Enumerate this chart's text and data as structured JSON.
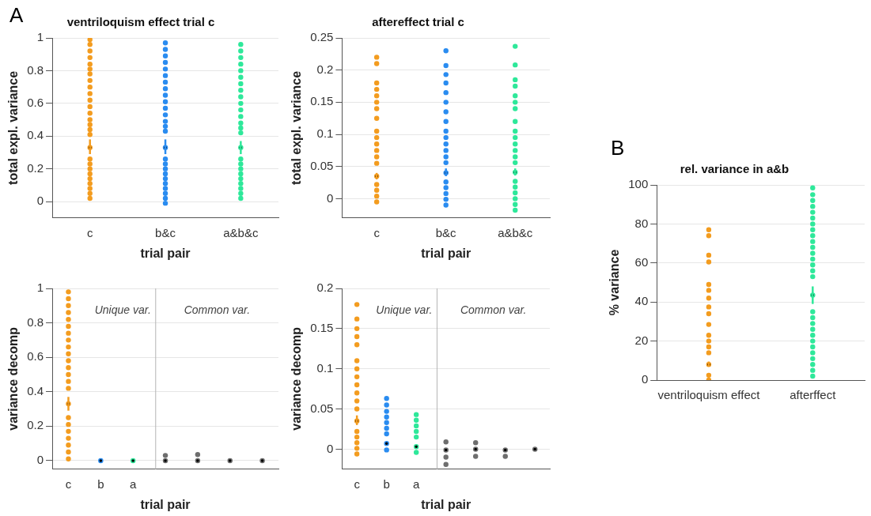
{
  "chart_data": [
    {
      "type": "scatter",
      "title": "ventriloquism effect trial c",
      "xlabel": "trial pair",
      "ylabel": "total expl. variance",
      "categories": [
        "c",
        "b&c",
        "a&b&c"
      ],
      "ylim": [
        -0.1,
        1
      ],
      "yticks": [
        0,
        0.2,
        0.4,
        0.6,
        0.8,
        1
      ],
      "grid": "y",
      "marker": "circle",
      "annotations": [
        "A"
      ],
      "series": [
        {
          "color": "#f39c1f",
          "x": [
            "c",
            "c",
            "c",
            "c",
            "c",
            "c",
            "c",
            "c",
            "c",
            "c",
            "c",
            "c",
            "c",
            "c",
            "c",
            "c",
            "c",
            "c",
            "c",
            "c",
            "c",
            "c",
            "c",
            "c",
            "c",
            "c"
          ],
          "values": [
            0.99,
            0.96,
            0.92,
            0.88,
            0.84,
            0.81,
            0.78,
            0.74,
            0.7,
            0.66,
            0.62,
            0.58,
            0.54,
            0.5,
            0.47,
            0.44,
            0.41,
            0.26,
            0.23,
            0.2,
            0.17,
            0.14,
            0.11,
            0.08,
            0.05,
            0.02
          ]
        },
        {
          "color": "#2a8cf0",
          "x": [
            "b&c",
            "b&c",
            "b&c",
            "b&c",
            "b&c",
            "b&c",
            "b&c",
            "b&c",
            "b&c",
            "b&c",
            "b&c",
            "b&c",
            "b&c",
            "b&c",
            "b&c",
            "b&c",
            "b&c",
            "b&c",
            "b&c",
            "b&c",
            "b&c",
            "b&c",
            "b&c",
            "b&c",
            "b&c"
          ],
          "values": [
            0.97,
            0.93,
            0.89,
            0.85,
            0.81,
            0.77,
            0.73,
            0.69,
            0.65,
            0.61,
            0.57,
            0.53,
            0.49,
            0.46,
            0.43,
            0.26,
            0.23,
            0.2,
            0.17,
            0.14,
            0.11,
            0.08,
            0.05,
            0.02,
            -0.01
          ]
        },
        {
          "color": "#2ee89a",
          "x": [
            "a&b&c",
            "a&b&c",
            "a&b&c",
            "a&b&c",
            "a&b&c",
            "a&b&c",
            "a&b&c",
            "a&b&c",
            "a&b&c",
            "a&b&c",
            "a&b&c",
            "a&b&c",
            "a&b&c",
            "a&b&c",
            "a&b&c",
            "a&b&c",
            "a&b&c",
            "a&b&c",
            "a&b&c",
            "a&b&c",
            "a&b&c",
            "a&b&c",
            "a&b&c",
            "a&b&c"
          ],
          "values": [
            0.96,
            0.92,
            0.88,
            0.84,
            0.8,
            0.76,
            0.72,
            0.68,
            0.64,
            0.6,
            0.56,
            0.52,
            0.48,
            0.45,
            0.42,
            0.26,
            0.23,
            0.2,
            0.17,
            0.14,
            0.11,
            0.08,
            0.05,
            0.02
          ]
        },
        {
          "colors": [
            "#f39c1f",
            "#2a8cf0",
            "#2ee89a"
          ],
          "values": [
            0.33,
            0.33,
            0.33
          ],
          "errors": [
            [
              0.29,
              0.38
            ],
            [
              0.29,
              0.38
            ],
            [
              0.29,
              0.37
            ]
          ]
        }
      ]
    },
    {
      "type": "scatter",
      "title": "aftereffect trial c",
      "xlabel": "trial pair",
      "ylabel": "total expl. variance",
      "categories": [
        "c",
        "b&c",
        "a&b&c"
      ],
      "ylim": [
        -0.03,
        0.25
      ],
      "yticks": [
        0,
        0.05,
        0.1,
        0.15,
        0.2,
        0.25
      ],
      "grid": "y",
      "marker": "circle",
      "series": [
        {
          "color": "#f39c1f",
          "x": [
            "c",
            "c",
            "c",
            "c",
            "c",
            "c",
            "c",
            "c",
            "c",
            "c",
            "c",
            "c",
            "c",
            "c",
            "c",
            "c",
            "c",
            "c"
          ],
          "values": [
            0.22,
            0.21,
            0.18,
            0.17,
            0.16,
            0.15,
            0.14,
            0.125,
            0.105,
            0.095,
            0.085,
            0.075,
            0.065,
            0.055,
            0.022,
            0.013,
            0.004,
            -0.005
          ]
        },
        {
          "color": "#2a8cf0",
          "x": [
            "b&c",
            "b&c",
            "b&c",
            "b&c",
            "b&c",
            "b&c",
            "b&c",
            "b&c",
            "b&c",
            "b&c",
            "b&c",
            "b&c",
            "b&c",
            "b&c",
            "b&c",
            "b&c",
            "b&c",
            "b&c",
            "b&c"
          ],
          "values": [
            0.23,
            0.207,
            0.193,
            0.18,
            0.165,
            0.15,
            0.135,
            0.12,
            0.105,
            0.095,
            0.085,
            0.075,
            0.065,
            0.056,
            0.026,
            0.017,
            0.008,
            -0.001,
            -0.01
          ]
        },
        {
          "color": "#2ee89a",
          "x": [
            "a&b&c",
            "a&b&c",
            "a&b&c",
            "a&b&c",
            "a&b&c",
            "a&b&c",
            "a&b&c",
            "a&b&c",
            "a&b&c",
            "a&b&c",
            "a&b&c",
            "a&b&c",
            "a&b&c",
            "a&b&c",
            "a&b&c",
            "a&b&c",
            "a&b&c",
            "a&b&c",
            "a&b&c",
            "a&b&c"
          ],
          "values": [
            0.237,
            0.208,
            0.185,
            0.175,
            0.16,
            0.15,
            0.14,
            0.12,
            0.105,
            0.095,
            0.085,
            0.075,
            0.065,
            0.056,
            0.027,
            0.018,
            0.009,
            0.0,
            -0.009,
            -0.018
          ]
        },
        {
          "colors": [
            "#f39c1f",
            "#2a8cf0",
            "#2ee89a"
          ],
          "values": [
            0.035,
            0.04,
            0.041
          ],
          "errors": [
            [
              0.03,
              0.04
            ],
            [
              0.035,
              0.047
            ],
            [
              0.036,
              0.047
            ]
          ]
        }
      ]
    },
    {
      "type": "scatter",
      "xlabel": "trial pair",
      "ylabel": "variance decomp",
      "categories": [
        "c",
        "b",
        "a",
        null,
        null,
        null,
        null
      ],
      "ylim": [
        -0.05,
        1
      ],
      "yticks": [
        0,
        0.2,
        0.4,
        0.6,
        0.8,
        1
      ],
      "grid": "y",
      "marker": "circle",
      "annotations": [
        "Unique var.",
        "Common var."
      ],
      "series": [
        {
          "color": "#f39c1f",
          "x": [
            "c",
            "c",
            "c",
            "c",
            "c",
            "c",
            "c",
            "c",
            "c",
            "c",
            "c",
            "c",
            "c",
            "c",
            "c",
            "c",
            "c",
            "c",
            "c",
            "c",
            "c",
            "c"
          ],
          "values": [
            0.98,
            0.94,
            0.9,
            0.86,
            0.82,
            0.78,
            0.74,
            0.7,
            0.66,
            0.62,
            0.58,
            0.54,
            0.5,
            0.46,
            0.42,
            0.25,
            0.21,
            0.17,
            0.13,
            0.09,
            0.05,
            0.01
          ]
        },
        {
          "color": "#6e6e6e",
          "values": [
            null,
            null,
            null,
            0.03,
            0.035,
            null,
            null
          ]
        },
        {
          "colors": [
            "#f39c1f",
            "#2a8cf0",
            "#2ee89a",
            "#6e6e6e",
            "#6e6e6e",
            "#6e6e6e",
            "#6e6e6e"
          ],
          "values": [
            0.33,
            0,
            0,
            0,
            0,
            0,
            0
          ],
          "errors": [
            [
              0.29,
              0.37
            ],
            null,
            null,
            null,
            null,
            null,
            null
          ]
        }
      ]
    },
    {
      "type": "scatter",
      "xlabel": "trial pair",
      "ylabel": "variance decomp",
      "categories": [
        "c",
        "b",
        "a",
        null,
        null,
        null,
        null
      ],
      "ylim": [
        -0.025,
        0.2
      ],
      "yticks": [
        0,
        0.05,
        0.1,
        0.15,
        0.2
      ],
      "grid": "y",
      "marker": "circle",
      "annotations": [
        "Unique var.",
        "Common var."
      ],
      "series": [
        {
          "color": "#f39c1f",
          "x": [
            "c",
            "c",
            "c",
            "c",
            "c",
            "c",
            "c",
            "c",
            "c",
            "c",
            "c",
            "c",
            "c",
            "c",
            "c",
            "c",
            "c"
          ],
          "values": [
            0.18,
            0.162,
            0.15,
            0.14,
            0.13,
            0.11,
            0.1,
            0.09,
            0.08,
            0.07,
            0.06,
            0.05,
            0.022,
            0.015,
            0.008,
            0.001,
            -0.006
          ]
        },
        {
          "color": "#2a8cf0",
          "x": [
            "b",
            "b",
            "b",
            "b",
            "b",
            "b",
            "b",
            "b"
          ],
          "values": [
            0.063,
            0.055,
            0.047,
            0.04,
            0.033,
            0.026,
            0.019,
            -0.001
          ]
        },
        {
          "color": "#2ee89a",
          "x": [
            "a",
            "a",
            "a",
            "a",
            "a",
            "a"
          ],
          "values": [
            0.043,
            0.036,
            0.029,
            0.022,
            0.015,
            -0.004
          ]
        },
        {
          "color": "#6e6e6e",
          "values": [
            null,
            null,
            null,
            0.009,
            0.008,
            null,
            null
          ]
        },
        {
          "color": "#6e6e6e",
          "values": [
            null,
            null,
            null,
            -0.01,
            -0.009,
            -0.009,
            null
          ]
        },
        {
          "color": "#6e6e6e",
          "values": [
            null,
            null,
            null,
            -0.019,
            null,
            null,
            null
          ]
        },
        {
          "colors": [
            "#f39c1f",
            "#2a8cf0",
            "#2ee89a",
            "#6e6e6e",
            "#6e6e6e",
            "#6e6e6e",
            "#6e6e6e"
          ],
          "values": [
            0.035,
            0.007,
            0.003,
            -0.001,
            0,
            -0.001,
            0
          ],
          "errors": [
            [
              0.03,
              0.042
            ],
            null,
            null,
            null,
            null,
            null,
            null
          ]
        }
      ]
    },
    {
      "type": "scatter",
      "title": "rel. variance in a&b",
      "ylabel": "% variance",
      "categories": [
        "ventriloquism effect",
        "afterffect"
      ],
      "ylim": [
        0,
        100
      ],
      "yticks": [
        0,
        20,
        40,
        60,
        80,
        100
      ],
      "grid": "y",
      "marker": "circle",
      "annotations": [
        "B"
      ],
      "series": [
        {
          "color": "#f39c1f",
          "x": [
            "ventriloquism effect",
            "ventriloquism effect",
            "ventriloquism effect",
            "ventriloquism effect",
            "ventriloquism effect",
            "ventriloquism effect",
            "ventriloquism effect",
            "ventriloquism effect",
            "ventriloquism effect",
            "ventriloquism effect",
            "ventriloquism effect",
            "ventriloquism effect",
            "ventriloquism effect",
            "ventriloquism effect",
            "ventriloquism effect",
            "ventriloquism effect"
          ],
          "values": [
            77,
            74,
            64,
            60.5,
            49,
            46,
            42,
            37.5,
            34,
            28.5,
            23,
            20,
            17,
            14,
            2.5,
            0
          ]
        },
        {
          "color": "#2ee89a",
          "x": [
            "afterffect",
            "afterffect",
            "afterffect",
            "afterffect",
            "afterffect",
            "afterffect",
            "afterffect",
            "afterffect",
            "afterffect",
            "afterffect",
            "afterffect",
            "afterffect",
            "afterffect",
            "afterffect",
            "afterffect",
            "afterffect",
            "afterffect",
            "afterffect",
            "afterffect",
            "afterffect",
            "afterffect",
            "afterffect",
            "afterffect",
            "afterffect",
            "afterffect",
            "afterffect",
            "afterffect",
            "afterffect"
          ],
          "values": [
            98.5,
            95,
            92,
            89,
            86,
            83,
            80,
            77,
            74,
            71,
            68,
            65,
            62,
            59,
            56,
            53,
            35,
            32,
            29,
            26,
            23,
            20,
            17,
            14,
            11,
            8,
            5,
            2
          ]
        },
        {
          "colors": [
            "#f39c1f",
            "#2ee89a"
          ],
          "values": [
            8,
            43.5
          ],
          "errors": [
            [
              7,
              9.5
            ],
            [
              39,
              48
            ]
          ]
        }
      ]
    }
  ]
}
